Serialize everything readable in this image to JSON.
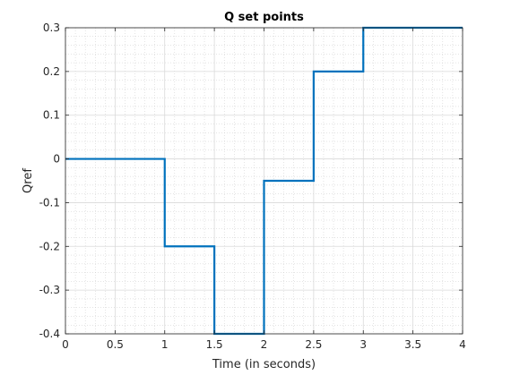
{
  "chart_data": {
    "type": "line",
    "title": "Q set points",
    "xlabel": "Time (in seconds)",
    "ylabel": "Qref",
    "xlim": [
      0,
      4
    ],
    "ylim": [
      -0.4,
      0.3
    ],
    "x_ticks": [
      0,
      0.5,
      1,
      1.5,
      2,
      2.5,
      3,
      3.5,
      4
    ],
    "x_tick_labels": [
      "0",
      "0.5",
      "1",
      "1.5",
      "2",
      "2.5",
      "3",
      "3.5",
      "4"
    ],
    "y_ticks": [
      -0.4,
      -0.3,
      -0.2,
      -0.1,
      0,
      0.1,
      0.2,
      0.3
    ],
    "y_tick_labels": [
      "-0.4",
      "-0.3",
      "-0.2",
      "-0.1",
      "0",
      "0.1",
      "0.2",
      "0.3"
    ],
    "grid": true,
    "minor_grid": true,
    "series": [
      {
        "color": "#0072BD",
        "step": "post",
        "x": [
          0,
          1,
          1.5,
          2,
          2.5,
          3,
          4
        ],
        "y": [
          0,
          -0.2,
          -0.4,
          -0.05,
          0.2,
          0.3,
          0.3
        ]
      }
    ]
  }
}
